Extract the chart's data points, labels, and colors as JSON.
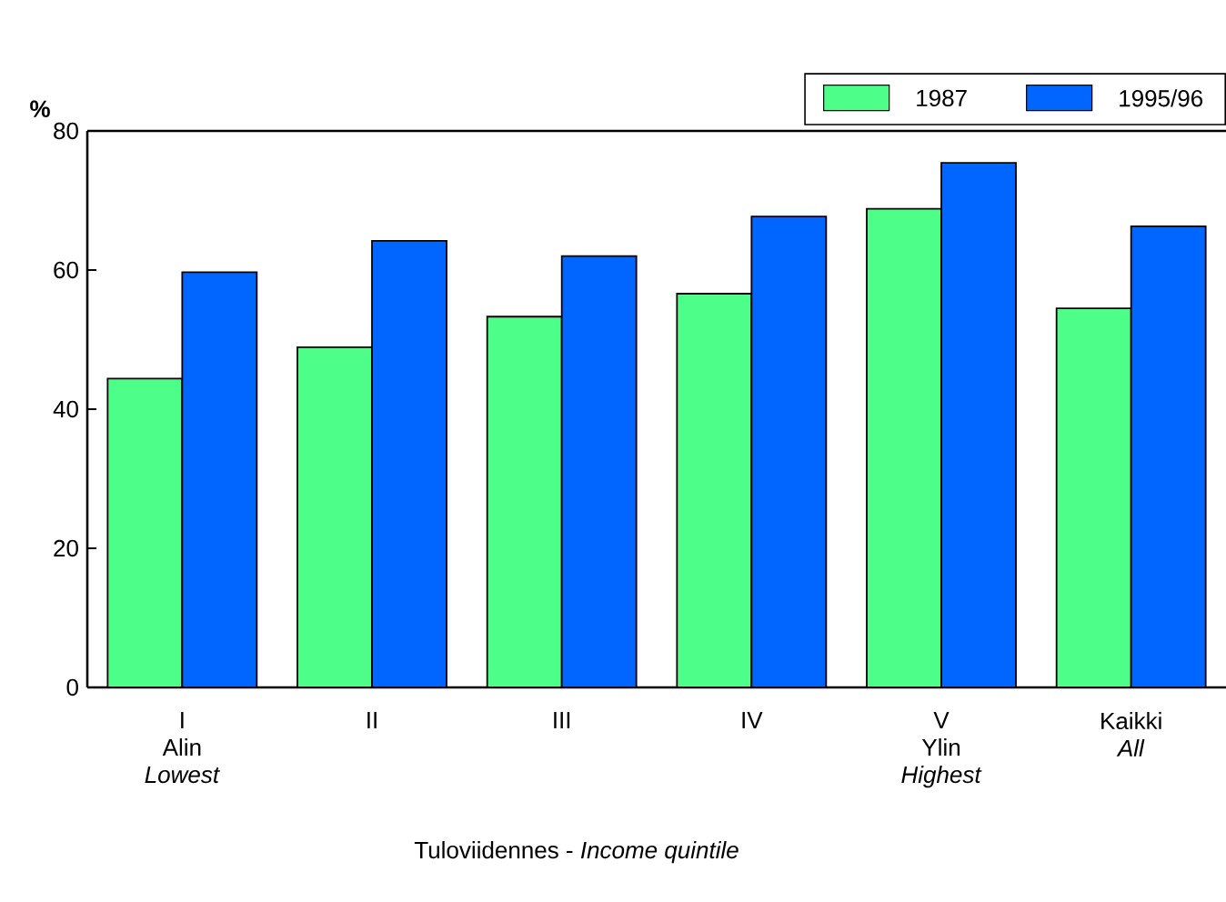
{
  "chart_data": {
    "type": "bar",
    "categories": [
      "I Alin *Lowest*",
      "II",
      "III",
      "IV",
      "V Ylin *Highest*",
      "Kaikki *All*"
    ],
    "series": [
      {
        "name": "1987",
        "color": "#4dff88",
        "values": [
          44.4,
          48.9,
          53.3,
          56.6,
          68.8,
          54.5
        ]
      },
      {
        "name": "1995/96",
        "color": "#0066ff",
        "values": [
          59.7,
          64.2,
          62.0,
          67.7,
          75.4,
          66.3
        ]
      }
    ],
    "ylabel": "%",
    "xlabel": "Tuloviidennes - *Income quintile*",
    "ylim": [
      0,
      80
    ],
    "yticks": [
      0,
      20,
      40,
      60,
      80
    ],
    "grid": false,
    "legend": "top right"
  }
}
